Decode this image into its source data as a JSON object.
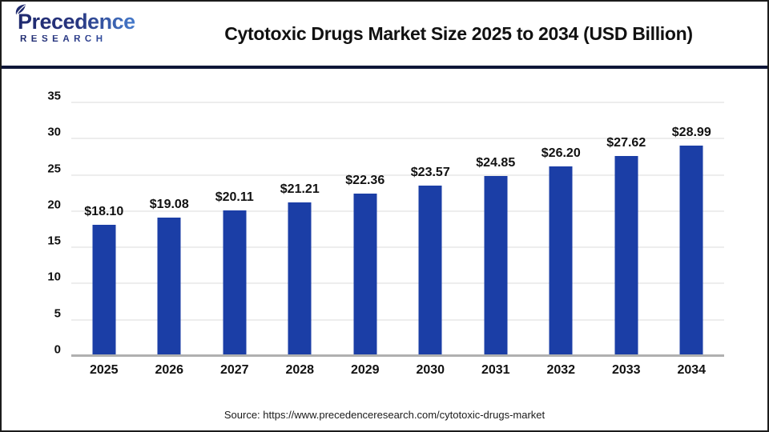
{
  "header": {
    "logo_line1": "Precedence",
    "logo_line2": "RESEARCH",
    "title": "Cytotoxic Drugs Market Size 2025 to 2034 (USD Billion)"
  },
  "chart_data": {
    "type": "bar",
    "title": "Cytotoxic Drugs Market Size 2025 to 2034 (USD Billion)",
    "categories": [
      "2025",
      "2026",
      "2027",
      "2028",
      "2029",
      "2030",
      "2031",
      "2032",
      "2033",
      "2034"
    ],
    "values": [
      18.1,
      19.08,
      20.11,
      21.21,
      22.36,
      23.57,
      24.85,
      26.2,
      27.62,
      28.99
    ],
    "value_labels": [
      "$18.10",
      "$19.08",
      "$20.11",
      "$21.21",
      "$22.36",
      "$23.57",
      "$24.85",
      "$26.20",
      "$27.62",
      "$28.99"
    ],
    "xlabel": "",
    "ylabel": "",
    "ylim": [
      0,
      35
    ],
    "yticks": [
      0,
      5,
      10,
      15,
      20,
      25,
      30,
      35
    ],
    "grid": "horizontal",
    "legend": false,
    "bar_color": "#1b3ea6"
  },
  "footer": {
    "source": "Source: https://www.precedenceresearch.com/cytotoxic-drugs-market"
  },
  "colors": {
    "bar": "#1b3ea6",
    "divider": "#0e1638",
    "gridline": "#ededed",
    "baseline": "#b0b0b0",
    "logo_dark": "#1f2a6e",
    "logo_light": "#4b87d9"
  }
}
